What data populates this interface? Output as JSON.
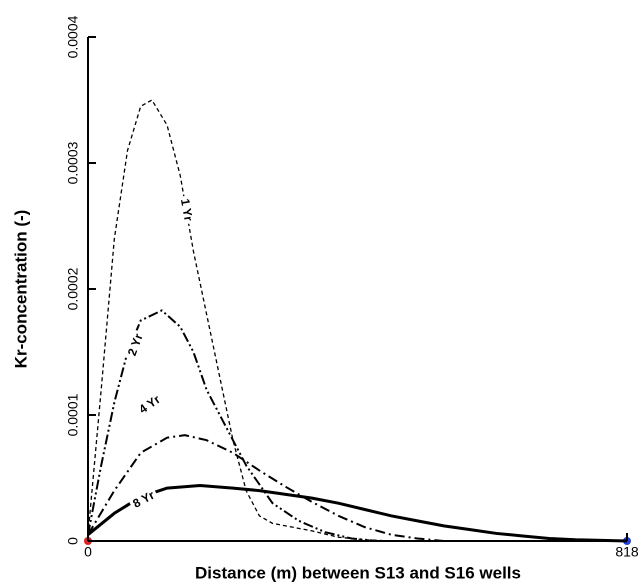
{
  "chart_data": {
    "type": "line",
    "x_label": "Distance (m) between S13 and S16 wells",
    "y_label": "Kr-concentration (-)",
    "xlim": [
      0,
      818
    ],
    "ylim": [
      0,
      0.0004
    ],
    "xticks": [
      0,
      818
    ],
    "yticks": [
      0,
      0.0001,
      0.0002,
      0.0003,
      0.0004
    ],
    "series": [
      {
        "name": "1 Yr",
        "color": "#000000",
        "line_style": "dashed",
        "x": [
          0,
          20,
          40,
          60,
          80,
          97,
          120,
          140,
          160,
          180,
          200,
          220,
          240,
          260,
          280,
          300,
          340,
          380,
          420,
          460,
          500,
          818
        ],
        "values": [
          5e-06,
          0.00012,
          0.00024,
          0.00031,
          0.000345,
          0.00035,
          0.00033,
          0.00029,
          0.00023,
          0.00018,
          0.00013,
          8e-05,
          4e-05,
          2e-05,
          1.4e-05,
          1.2e-05,
          8e-06,
          3e-06,
          1e-06,
          0,
          0,
          0
        ]
      },
      {
        "name": "2 Yr",
        "color": "#000000",
        "line_style": "dash-dot-dot",
        "x": [
          0,
          20,
          40,
          60,
          80,
          112,
          140,
          160,
          180,
          200,
          240,
          280,
          320,
          360,
          400,
          440,
          818
        ],
        "values": [
          5e-06,
          6e-05,
          0.00011,
          0.00015,
          0.000175,
          0.000183,
          0.00017,
          0.00015,
          0.00012,
          0.0001,
          6e-05,
          3e-05,
          1.6e-05,
          7e-06,
          2e-06,
          0,
          0
        ]
      },
      {
        "name": "4 Yr",
        "color": "#000000",
        "line_style": "dash-dot",
        "x": [
          0,
          40,
          80,
          120,
          147,
          180,
          220,
          260,
          300,
          340,
          380,
          420,
          460,
          500,
          540,
          818
        ],
        "values": [
          5e-06,
          4e-05,
          7e-05,
          8.2e-05,
          8.4e-05,
          8e-05,
          7e-05,
          5.6e-05,
          4.3e-05,
          3.1e-05,
          2e-05,
          1.1e-05,
          5e-06,
          2e-06,
          0,
          0
        ]
      },
      {
        "name": "8 Yr",
        "color": "#000000",
        "line_style": "solid",
        "x": [
          0,
          40,
          80,
          120,
          170,
          220,
          260,
          300,
          340,
          380,
          420,
          460,
          500,
          540,
          580,
          620,
          660,
          700,
          740,
          780,
          818
        ],
        "values": [
          5e-06,
          2.2e-05,
          3.5e-05,
          4.2e-05,
          4.4e-05,
          4.2e-05,
          4e-05,
          3.7e-05,
          3.4e-05,
          3e-05,
          2.5e-05,
          2e-05,
          1.6e-05,
          1.2e-05,
          9e-06,
          6e-06,
          4e-06,
          2e-06,
          1e-06,
          5e-07,
          0
        ]
      }
    ]
  }
}
